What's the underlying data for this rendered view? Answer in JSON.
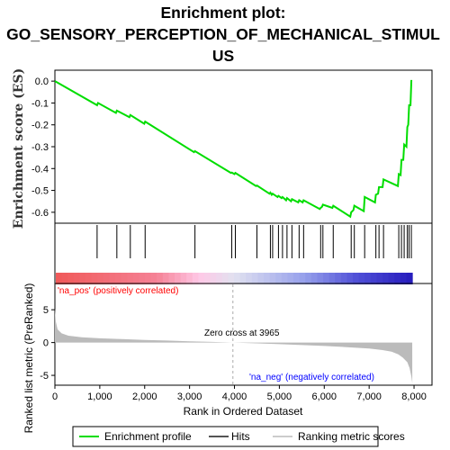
{
  "title_line1": "Enrichment plot:",
  "title_line2": "GO_SENSORY_PERCEPTION_OF_MECHANICAL_STIMUL",
  "title_line3": "US",
  "colors": {
    "enrichment": "#00dd00",
    "hits": "#000000",
    "ranking": "#bbbbbb",
    "pos_label": "#ff0000",
    "neg_label": "#0000ff"
  },
  "chart_data": [
    {
      "type": "line",
      "name": "enrichment-profile",
      "ylabel": "Enrichment score (ES)",
      "xlim": [
        0,
        8400
      ],
      "ylim": [
        -0.65,
        0.05
      ],
      "yticks": [
        "0.0",
        "-0.1",
        "-0.2",
        "-0.3",
        "-0.4",
        "-0.5",
        "-0.6"
      ],
      "ytick_values": [
        0.0,
        -0.1,
        -0.2,
        -0.3,
        -0.4,
        -0.5,
        -0.6
      ],
      "x": [
        0,
        940,
        960,
        1360,
        1380,
        1660,
        1680,
        1990,
        2010,
        3100,
        3120,
        3920,
        3940,
        4000,
        4020,
        4480,
        4500,
        4780,
        4800,
        4830,
        4850,
        4960,
        4980,
        5050,
        5070,
        5150,
        5170,
        5260,
        5280,
        5420,
        5440,
        5520,
        5540,
        5900,
        5920,
        5950,
        5970,
        6180,
        6200,
        6580,
        6600,
        6650,
        6670,
        6880,
        6900,
        7130,
        7150,
        7200,
        7220,
        7300,
        7320,
        7640,
        7660,
        7700,
        7720,
        7760,
        7780,
        7830,
        7850,
        7870,
        7890,
        7920,
        7940
      ],
      "y": [
        0.0,
        -0.11,
        -0.1,
        -0.145,
        -0.135,
        -0.165,
        -0.155,
        -0.195,
        -0.185,
        -0.325,
        -0.32,
        -0.42,
        -0.418,
        -0.425,
        -0.42,
        -0.48,
        -0.478,
        -0.515,
        -0.51,
        -0.52,
        -0.515,
        -0.53,
        -0.525,
        -0.535,
        -0.53,
        -0.545,
        -0.535,
        -0.55,
        -0.54,
        -0.555,
        -0.545,
        -0.555,
        -0.545,
        -0.585,
        -0.58,
        -0.575,
        -0.565,
        -0.58,
        -0.57,
        -0.62,
        -0.6,
        -0.59,
        -0.57,
        -0.595,
        -0.53,
        -0.555,
        -0.52,
        -0.515,
        -0.485,
        -0.485,
        -0.45,
        -0.48,
        -0.425,
        -0.43,
        -0.36,
        -0.36,
        -0.29,
        -0.3,
        -0.21,
        -0.2,
        -0.11,
        -0.11,
        0.005
      ]
    },
    {
      "type": "bar",
      "name": "hits",
      "x": [
        940,
        1380,
        1680,
        2010,
        3120,
        3940,
        4020,
        4500,
        4800,
        4850,
        4980,
        5070,
        5170,
        5280,
        5440,
        5540,
        5920,
        5970,
        6200,
        6600,
        6670,
        6900,
        7150,
        7220,
        7320,
        7660,
        7720,
        7780,
        7850,
        7890,
        7940
      ]
    },
    {
      "type": "area",
      "name": "ranked-list-metric",
      "ylabel": "Ranked list metric (PreRanked)",
      "xlabel": "Rank in Ordered Dataset",
      "ylim": [
        -6.5,
        9
      ],
      "yticks": [
        "5",
        "0",
        "-5"
      ],
      "ytick_values": [
        5,
        0,
        -5
      ],
      "xticks": [
        "0",
        "1,000",
        "2,000",
        "3,000",
        "4,000",
        "5,000",
        "6,000",
        "7,000",
        "8,000"
      ],
      "xtick_values": [
        0,
        1000,
        2000,
        3000,
        4000,
        5000,
        6000,
        7000,
        8000
      ],
      "x": [
        0,
        20,
        60,
        150,
        300,
        600,
        1000,
        1500,
        2000,
        2500,
        3000,
        3500,
        3965,
        4500,
        5000,
        5500,
        6000,
        6500,
        7000,
        7300,
        7500,
        7650,
        7750,
        7850,
        7900,
        7940,
        7960
      ],
      "y": [
        5.2,
        3.2,
        2.0,
        1.4,
        1.05,
        0.8,
        0.65,
        0.52,
        0.4,
        0.3,
        0.2,
        0.1,
        0.0,
        -0.12,
        -0.25,
        -0.38,
        -0.52,
        -0.7,
        -0.92,
        -1.15,
        -1.4,
        -1.8,
        -2.3,
        -3.0,
        -3.9,
        -5.2,
        -6.2
      ],
      "zero_cross_label": "Zero cross at 3965",
      "zero_cross": 3965,
      "pos_label": "'na_pos' (positively correlated)",
      "neg_label": "'na_neg' (negatively correlated)"
    }
  ],
  "legend": {
    "enrichment_label": "Enrichment profile",
    "hits_label": "Hits",
    "ranking_label": "Ranking metric scores"
  }
}
